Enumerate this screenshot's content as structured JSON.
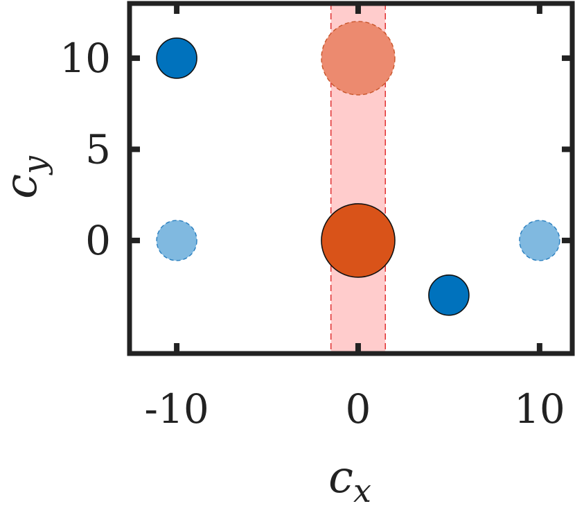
{
  "chart_data": {
    "type": "scatter",
    "xlabel": "c_x",
    "ylabel": "c_y",
    "xlabel_main": "c",
    "xlabel_sub": "x",
    "ylabel_main": "c",
    "ylabel_sub": "y",
    "xlim": [
      -12.6,
      11.8
    ],
    "ylim": [
      -6.2,
      13.0
    ],
    "xticks": [
      -10,
      0,
      10
    ],
    "xtick_labels": [
      "-10",
      "0",
      "10"
    ],
    "yticks": [
      0,
      5,
      10
    ],
    "ytick_labels": [
      "0",
      "5",
      "10"
    ],
    "grid": false,
    "band": {
      "x_min": -1.5,
      "x_max": 1.5,
      "color": "#ffcccc",
      "edge_color": "#e03030"
    },
    "points": [
      {
        "x": -10,
        "y": 10,
        "size": "small",
        "color": "#0072bd",
        "edge": "solid"
      },
      {
        "x": -10,
        "y": 0,
        "size": "small",
        "color": "#80b9e0",
        "edge": "dashed"
      },
      {
        "x": 0,
        "y": 10,
        "size": "large",
        "color": "#ec8a6f",
        "edge": "dashed"
      },
      {
        "x": 0,
        "y": 0,
        "size": "large",
        "color": "#d95319",
        "edge": "solid"
      },
      {
        "x": 5,
        "y": -3,
        "size": "small",
        "color": "#0072bd",
        "edge": "solid"
      },
      {
        "x": 10,
        "y": 0,
        "size": "small",
        "color": "#80b9e0",
        "edge": "dashed"
      }
    ]
  }
}
